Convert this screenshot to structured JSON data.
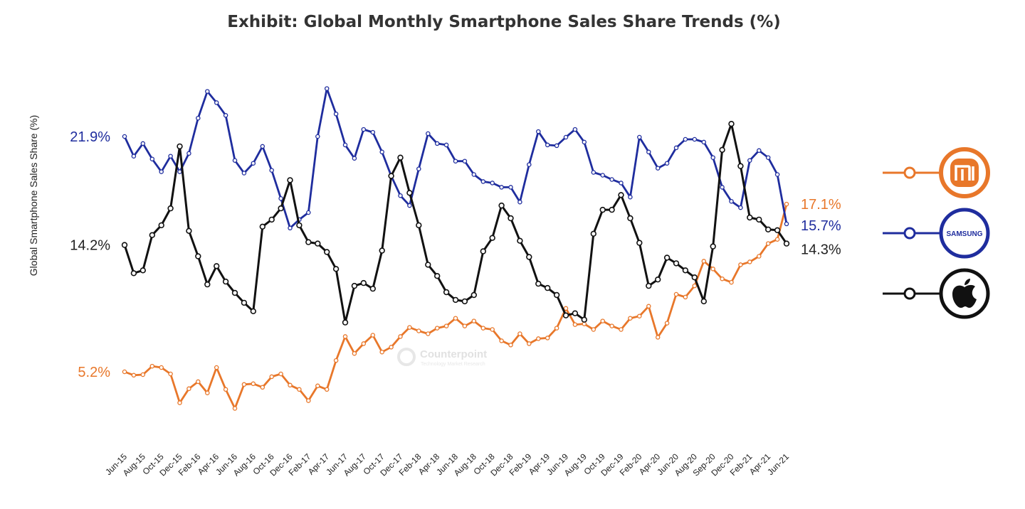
{
  "chart_data": {
    "type": "line",
    "title": "Exhibit: Global Monthly Smartphone Sales Share Trends (%)",
    "ylabel": "Global Smartphone Sales Share (%)",
    "xlabel": "",
    "x": [
      "Jun-15",
      "Jul-15",
      "Aug-15",
      "Sep-15",
      "Oct-15",
      "Nov-15",
      "Dec-15",
      "Jan-16",
      "Feb-16",
      "Mar-16",
      "Apr-16",
      "May-16",
      "Jun-16",
      "Jul-16",
      "Aug-16",
      "Sep-16",
      "Oct-16",
      "Nov-16",
      "Dec-16",
      "Jan-17",
      "Feb-17",
      "Mar-17",
      "Apr-17",
      "May-17",
      "Jun-17",
      "Jul-17",
      "Aug-17",
      "Sep-17",
      "Oct-17",
      "Nov-17",
      "Dec-17",
      "Jan-18",
      "Feb-18",
      "Mar-18",
      "Apr-18",
      "May-18",
      "Jun-18",
      "Jul-18",
      "Aug-18",
      "Sep-18",
      "Oct-18",
      "Nov-18",
      "Dec-18",
      "Jan-19",
      "Feb-19",
      "Mar-19",
      "Apr-19",
      "May-19",
      "Jun-19",
      "Jul-19",
      "Aug-19",
      "Sep-19",
      "Oct-19",
      "Nov-19",
      "Dec-19",
      "Jan-20",
      "Feb-20",
      "Mar-20",
      "Apr-20",
      "May-20",
      "Jun-20",
      "Jul-20",
      "Aug-20",
      "Sep-20",
      "Oct-20",
      "Nov-20",
      "Dec-20",
      "Jan-21",
      "Feb-21",
      "Mar-21",
      "Apr-21",
      "May-21",
      "Jun-21"
    ],
    "tick_labels": [
      "Jun-15",
      "Aug-15",
      "Oct-15",
      "Dec-15",
      "Feb-16",
      "Apr-16",
      "Jun-16",
      "Aug-16",
      "Oct-16",
      "Dec-16",
      "Feb-17",
      "Apr-17",
      "Jun-17",
      "Aug-17",
      "Oct-17",
      "Dec-17",
      "Feb-18",
      "Apr-18",
      "Jun-18",
      "Aug-18",
      "Oct-18",
      "Dec-18",
      "Feb-19",
      "Apr-19",
      "Jun-19",
      "Aug-19",
      "Oct-19",
      "Dec-19",
      "Feb-20",
      "Apr-20",
      "Jun-20",
      "Aug-20",
      "Sep-20",
      "Dec-20",
      "Feb-21",
      "Apr-21",
      "Jun-21"
    ],
    "ylim": [
      0.5,
      27.5
    ],
    "grid": false,
    "legend": "right",
    "series": [
      {
        "key": "samsung",
        "color": "#1F2D9E",
        "start_label": "21.9%",
        "end_label": "15.7%",
        "values": [
          21.9,
          20.5,
          21.4,
          20.3,
          19.4,
          20.5,
          19.4,
          20.7,
          23.2,
          25.1,
          24.3,
          23.4,
          20.2,
          19.3,
          20.0,
          21.2,
          19.5,
          17.5,
          15.4,
          16.0,
          16.5,
          21.9,
          25.3,
          23.5,
          21.3,
          20.35,
          22.4,
          22.2,
          20.8,
          19.1,
          17.7,
          17.0,
          19.6,
          22.1,
          21.4,
          21.3,
          20.15,
          20.15,
          19.2,
          18.7,
          18.6,
          18.3,
          18.3,
          17.25,
          19.9,
          22.25,
          21.3,
          21.25,
          21.85,
          22.4,
          21.5,
          19.35,
          19.15,
          18.85,
          18.6,
          17.6,
          21.85,
          20.8,
          19.65,
          20.0,
          21.1,
          21.7,
          21.7,
          21.5,
          20.4,
          18.3,
          17.3,
          16.85,
          20.2,
          20.9,
          20.4,
          19.2,
          15.7
        ]
      },
      {
        "key": "apple",
        "color": "#111111",
        "start_label": "14.2%",
        "end_label": "14.3%",
        "values": [
          14.2,
          12.2,
          12.4,
          14.9,
          15.6,
          16.8,
          21.2,
          15.2,
          13.4,
          11.4,
          12.7,
          11.6,
          10.8,
          10.1,
          9.5,
          15.5,
          16.0,
          16.8,
          18.8,
          15.6,
          14.4,
          14.3,
          13.7,
          12.5,
          8.7,
          11.3,
          11.5,
          11.1,
          13.8,
          19.1,
          20.4,
          17.9,
          15.6,
          12.8,
          12.0,
          10.85,
          10.3,
          10.2,
          10.65,
          13.75,
          14.7,
          17.0,
          16.1,
          14.5,
          13.35,
          11.45,
          11.15,
          10.65,
          9.2,
          9.35,
          8.9,
          15.0,
          16.7,
          16.7,
          17.75,
          16.1,
          14.35,
          11.3,
          11.75,
          13.3,
          12.9,
          12.4,
          11.9,
          10.2,
          14.1,
          20.95,
          22.8,
          19.8,
          16.15,
          16.0,
          15.3,
          15.25,
          14.3
        ]
      },
      {
        "key": "xiaomi",
        "color": "#E8772A",
        "start_label": "5.2%",
        "end_label": "17.1%",
        "values": [
          5.2,
          4.96,
          5.0,
          5.6,
          5.5,
          5.05,
          3.0,
          4.0,
          4.5,
          3.7,
          5.5,
          3.95,
          2.6,
          4.3,
          4.35,
          4.1,
          4.85,
          5.05,
          4.25,
          3.95,
          3.15,
          4.2,
          3.95,
          6.0,
          7.7,
          6.5,
          7.2,
          7.8,
          6.6,
          6.95,
          7.7,
          8.35,
          8.1,
          7.9,
          8.3,
          8.45,
          9.0,
          8.45,
          8.8,
          8.3,
          8.2,
          7.4,
          7.1,
          7.9,
          7.2,
          7.55,
          7.6,
          8.3,
          9.7,
          8.55,
          8.6,
          8.2,
          8.8,
          8.45,
          8.2,
          9.0,
          9.15,
          9.85,
          7.65,
          8.65,
          10.7,
          10.5,
          11.3,
          13.05,
          12.5,
          11.8,
          11.55,
          12.8,
          13.0,
          13.4,
          14.3,
          14.6,
          17.1
        ]
      }
    ]
  },
  "legend": [
    {
      "key": "xiaomi",
      "logo": "mi-logo-icon",
      "logo_text": "mi",
      "color": "#E8772A"
    },
    {
      "key": "samsung",
      "logo": "samsung-logo-icon",
      "logo_text": "SAMSUNG",
      "color": "#1F2D9E"
    },
    {
      "key": "apple",
      "logo": "apple-logo-icon",
      "logo_text": "",
      "color": "#111111"
    }
  ],
  "watermark": {
    "name": "Counterpoint",
    "tagline": "Technology Market Research"
  }
}
